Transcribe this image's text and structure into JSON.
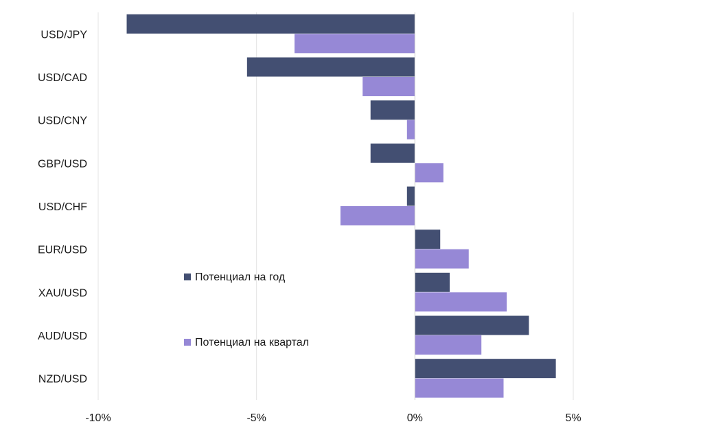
{
  "chart_data": {
    "type": "bar",
    "orientation": "horizontal",
    "categories": [
      "USD/JPY",
      "USD/CAD",
      "USD/CNY",
      "GBP/USD",
      "USD/CHF",
      "EUR/USD",
      "XAU/USD",
      "AUD/USD",
      "NZD/USD"
    ],
    "series": [
      {
        "name": "Потенциал на год",
        "color": "#434f72",
        "values": [
          -9.1,
          -5.3,
          -1.4,
          -1.4,
          -0.25,
          0.8,
          1.1,
          3.6,
          4.45
        ]
      },
      {
        "name": "Потенциал на квартал",
        "color": "#9688d6",
        "values": [
          -3.8,
          -1.65,
          -0.25,
          0.9,
          -2.35,
          1.7,
          2.9,
          2.1,
          2.8
        ]
      }
    ],
    "xticks": [
      -10,
      -5,
      0,
      5
    ],
    "xtick_labels": [
      "-10%",
      "-5%",
      "0%",
      "5%"
    ],
    "xlim": [
      -10,
      5
    ],
    "grid": "vertical",
    "legend_position": "inside-left",
    "title": "",
    "xlabel": "",
    "ylabel": ""
  }
}
